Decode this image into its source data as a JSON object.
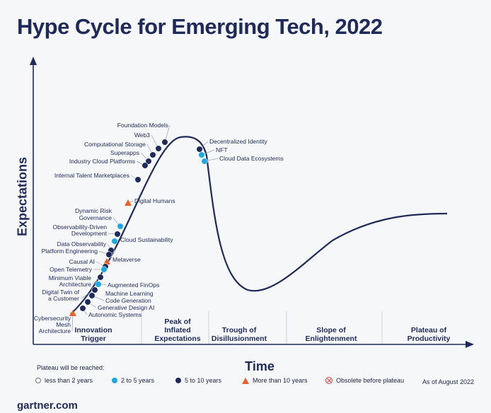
{
  "title": "Hype Cycle for Emerging Tech, 2022",
  "chart_data": {
    "type": "scatter",
    "title": "Hype Cycle for Emerging Tech, 2022",
    "xlabel": "Time",
    "ylabel": "Expectations",
    "phases": [
      "Innovation Trigger",
      "Peak of Inflated Expectations",
      "Trough of Disillusionment",
      "Slope of Enlightenment",
      "Plateau of Productivity"
    ],
    "points": [
      {
        "label": "Foundation Models",
        "category": "5 to 10 years"
      },
      {
        "label": "Web3",
        "category": "5 to 10 years"
      },
      {
        "label": "Computational Storage",
        "category": "5 to 10 years"
      },
      {
        "label": "Superapps",
        "category": "5 to 10 years"
      },
      {
        "label": "Industry Cloud Platforms",
        "category": "5 to 10 years"
      },
      {
        "label": "Internal Talent Marketplaces",
        "category": "5 to 10 years"
      },
      {
        "label": "Digital Humans",
        "category": "More than 10 years"
      },
      {
        "label": "Dynamic Risk Governance",
        "category": "2 to 5 years"
      },
      {
        "label": "Observability-Driven Development",
        "category": "5 to 10 years"
      },
      {
        "label": "Cloud Sustainability",
        "category": "2 to 5 years"
      },
      {
        "label": "Data Observability",
        "category": "5 to 10 years"
      },
      {
        "label": "Platform Engineering",
        "category": "5 to 10 years"
      },
      {
        "label": "Metaverse",
        "category": "More than 10 years"
      },
      {
        "label": "Causal AI",
        "category": "5 to 10 years"
      },
      {
        "label": "Open Telemetry",
        "category": "2 to 5 years"
      },
      {
        "label": "Minimum Viable Architecture",
        "category": "5 to 10 years"
      },
      {
        "label": "Augmented FinOps",
        "category": "2 to 5 years"
      },
      {
        "label": "Digital Twin of a Customer",
        "category": "5 to 10 years"
      },
      {
        "label": "Machine Learning Code Generation",
        "category": "5 to 10 years"
      },
      {
        "label": "Generative Design AI",
        "category": "5 to 10 years"
      },
      {
        "label": "Autonomic Systems",
        "category": "5 to 10 years"
      },
      {
        "label": "Cybersecurity Mesh Architecture",
        "category": "More than 10 years"
      },
      {
        "label": "Decentralized Identity",
        "category": "5 to 10 years"
      },
      {
        "label": "NFT",
        "category": "2 to 5 years"
      },
      {
        "label": "Cloud Data Ecosystems",
        "category": "2 to 5 years"
      }
    ]
  },
  "legend": {
    "caption": "Plateau will be reached:",
    "items": [
      {
        "label": "less than 2 years"
      },
      {
        "label": "2 to 5 years"
      },
      {
        "label": "5 to 10 years"
      },
      {
        "label": "More than 10 years"
      },
      {
        "label": "Obsolete before plateau"
      }
    ]
  },
  "as_of": "As of August 2022",
  "brand": "gartner.com",
  "colors": {
    "navy": "#1e2a5a",
    "light_blue": "#1ea7e4",
    "orange": "#e8612c",
    "red": "#d7443e",
    "curve": "#1e2a5a",
    "divider": "#ccd1dc"
  }
}
